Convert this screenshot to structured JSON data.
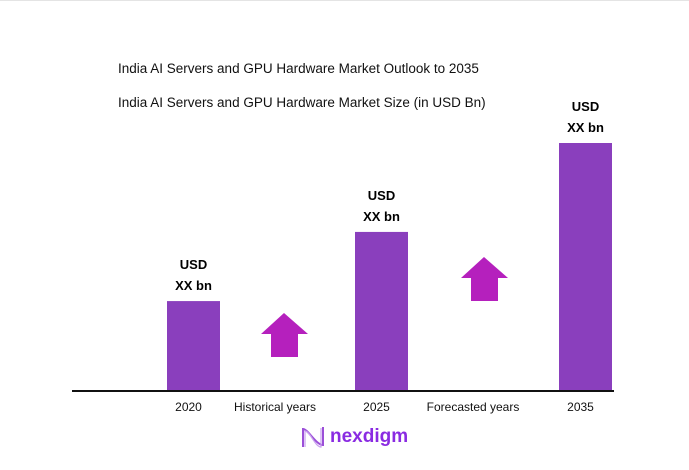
{
  "chart_data": {
    "type": "bar",
    "title": "India AI Servers and GPU Hardware Market Outlook to 2035",
    "subtitle": "India AI Servers and GPU Hardware Market Size (in USD Bn)",
    "categories": [
      "2020",
      "2025",
      "2035"
    ],
    "values": [
      36,
      64,
      100
    ],
    "data_labels": [
      [
        "USD",
        "XX bn"
      ],
      [
        "USD",
        "XX bn"
      ],
      [
        "USD",
        "XX bn"
      ]
    ],
    "annotations": [
      "Historical years",
      "Forecasted years"
    ],
    "xlabel": "",
    "ylabel": "",
    "ylim": [
      0,
      100
    ],
    "grid": false,
    "bar_color": "#8a3fbd",
    "arrow_color": "#b520bd"
  },
  "brand": {
    "name": "nexdigm",
    "color": "#8a2be2"
  }
}
